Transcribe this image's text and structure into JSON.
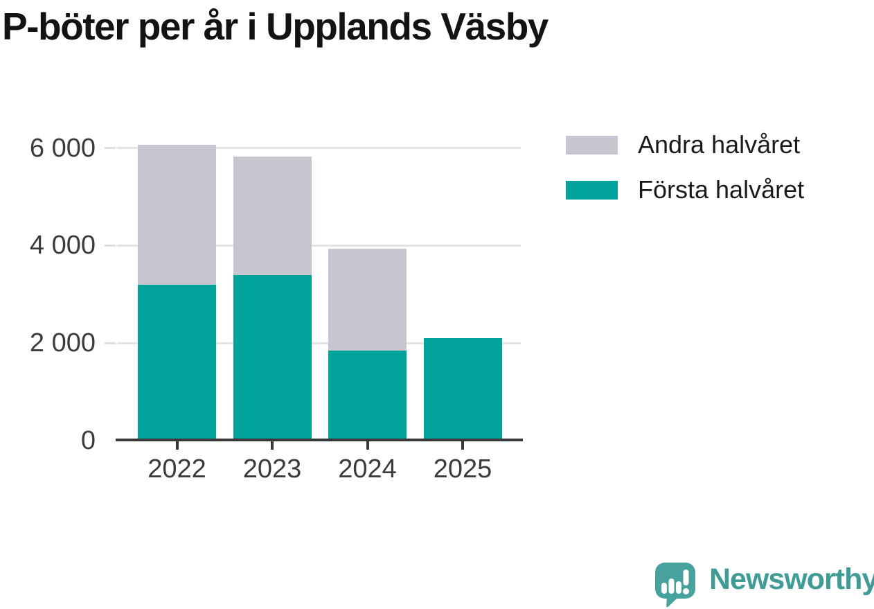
{
  "title": "P-böter per år i Upplands Väsby",
  "chart_data": {
    "type": "bar",
    "stacked": true,
    "title": "P-böter per år i Upplands Väsby",
    "xlabel": "",
    "ylabel": "",
    "categories": [
      "2022",
      "2023",
      "2024",
      "2025"
    ],
    "series": [
      {
        "name": "Första halvåret",
        "color": "#00a29a",
        "values": [
          3200,
          3400,
          1850,
          2100
        ]
      },
      {
        "name": "Andra halvåret",
        "color": "#c8c5d0",
        "values": [
          2870,
          2430,
          2080,
          0
        ]
      }
    ],
    "ylim": [
      0,
      6400
    ],
    "y_ticks": [
      {
        "value": 0,
        "label": "0"
      },
      {
        "value": 2000,
        "label": "2 000"
      },
      {
        "value": 4000,
        "label": "4 000"
      },
      {
        "value": 6000,
        "label": "6 000"
      }
    ],
    "grid": "horizontal",
    "legend_position": "top-right"
  },
  "style": {
    "axis_color": "#383838",
    "grid_color": "#e4e4e4",
    "tick_color": "#dedede",
    "tick_label_color": "#3b3b3b",
    "title_color": "#111413",
    "background": "#ffffff"
  },
  "logo": {
    "wordmark": "Newsworthy",
    "icon": "newsworthy-speech-bubble-bar-chart-icon",
    "wordmark_color": "#3e9b96",
    "icon_color": "#47a29e"
  }
}
